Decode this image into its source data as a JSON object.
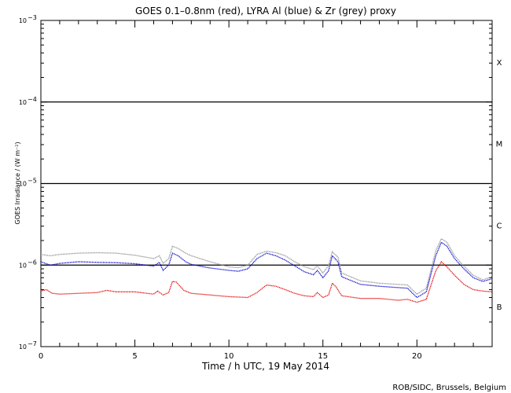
{
  "chart_data": {
    "type": "line",
    "title": "GOES 0.1–0.8nm (red), LYRA Al (blue) & Zr (grey) proxy",
    "xlabel": "Time / h UTC, 19 May 2014",
    "ylabel": "GOES Irradiance / (W m⁻²)",
    "credit": "ROB/SIDC, Brussels, Belgium",
    "x_range": [
      0,
      24
    ],
    "y_range": [
      1e-07,
      0.001
    ],
    "y_scale": "log",
    "x_ticks": [
      0,
      5,
      10,
      15,
      20
    ],
    "x_tick_labels": [
      "0",
      "5",
      "10",
      "15",
      "20"
    ],
    "y_ticks": [
      {
        "value": 1e-07,
        "base": "10",
        "exp": "−7"
      },
      {
        "value": 1e-06,
        "base": "10",
        "exp": "−6"
      },
      {
        "value": 1e-05,
        "base": "10",
        "exp": "−5"
      },
      {
        "value": 0.0001,
        "base": "10",
        "exp": "−4"
      },
      {
        "value": 0.001,
        "base": "10",
        "exp": "−3"
      }
    ],
    "threshold_lines": [
      1e-06,
      1e-05,
      0.0001
    ],
    "flare_classes": [
      {
        "label": "X",
        "value": 0.00031
      },
      {
        "label": "M",
        "value": 3.1e-05
      },
      {
        "label": "C",
        "value": 3.1e-06
      },
      {
        "label": "B",
        "value": 3.1e-07
      }
    ],
    "series": [
      {
        "color": "#e00000",
        "points": [
          [
            0,
            4.8e-07
          ],
          [
            0.3,
            5e-07
          ],
          [
            0.6,
            4.5e-07
          ],
          [
            1,
            4.4e-07
          ],
          [
            2,
            4.5e-07
          ],
          [
            3,
            4.6e-07
          ],
          [
            3.5,
            4.9e-07
          ],
          [
            4,
            4.7e-07
          ],
          [
            5,
            4.7e-07
          ],
          [
            6,
            4.4e-07
          ],
          [
            6.2,
            4.8e-07
          ],
          [
            6.5,
            4.3e-07
          ],
          [
            6.8,
            4.6e-07
          ],
          [
            7,
            6.3e-07
          ],
          [
            7.2,
            6.2e-07
          ],
          [
            7.6,
            4.9e-07
          ],
          [
            8,
            4.5e-07
          ],
          [
            9,
            4.3e-07
          ],
          [
            10,
            4.1e-07
          ],
          [
            11,
            4e-07
          ],
          [
            11.5,
            4.6e-07
          ],
          [
            12,
            5.7e-07
          ],
          [
            12.5,
            5.5e-07
          ],
          [
            13,
            5e-07
          ],
          [
            13.5,
            4.5e-07
          ],
          [
            14,
            4.2e-07
          ],
          [
            14.5,
            4.1e-07
          ],
          [
            14.7,
            4.6e-07
          ],
          [
            15,
            4e-07
          ],
          [
            15.3,
            4.3e-07
          ],
          [
            15.5,
            6e-07
          ],
          [
            15.7,
            5.4e-07
          ],
          [
            16,
            4.2e-07
          ],
          [
            17,
            3.9e-07
          ],
          [
            18,
            3.9e-07
          ],
          [
            19,
            3.7e-07
          ],
          [
            19.5,
            3.8e-07
          ],
          [
            20,
            3.5e-07
          ],
          [
            20.5,
            3.8e-07
          ],
          [
            21,
            8.5e-07
          ],
          [
            21.3,
            1.1e-06
          ],
          [
            21.6,
            9.5e-07
          ],
          [
            22,
            7.5e-07
          ],
          [
            22.5,
            5.8e-07
          ],
          [
            23,
            5e-07
          ],
          [
            23.5,
            4.8e-07
          ],
          [
            24,
            4.7e-07
          ]
        ]
      },
      {
        "color": "#0000d0",
        "points": [
          [
            0,
            1.1e-06
          ],
          [
            0.5,
            1e-06
          ],
          [
            1,
            1.05e-06
          ],
          [
            2,
            1.1e-06
          ],
          [
            3,
            1.08e-06
          ],
          [
            4,
            1.07e-06
          ],
          [
            5,
            1.04e-06
          ],
          [
            6,
            9.7e-07
          ],
          [
            6.3,
            1.08e-06
          ],
          [
            6.5,
            8.6e-07
          ],
          [
            6.8,
            1e-06
          ],
          [
            7,
            1.4e-06
          ],
          [
            7.3,
            1.3e-06
          ],
          [
            7.7,
            1.1e-06
          ],
          [
            8,
            1.02e-06
          ],
          [
            9,
            9.2e-07
          ],
          [
            10,
            8.6e-07
          ],
          [
            10.5,
            8.4e-07
          ],
          [
            11,
            9e-07
          ],
          [
            11.5,
            1.2e-06
          ],
          [
            12,
            1.4e-06
          ],
          [
            12.5,
            1.3e-06
          ],
          [
            13,
            1.15e-06
          ],
          [
            13.5,
            9.8e-07
          ],
          [
            14,
            8.3e-07
          ],
          [
            14.5,
            7.6e-07
          ],
          [
            14.7,
            8.6e-07
          ],
          [
            15,
            7e-07
          ],
          [
            15.3,
            8.5e-07
          ],
          [
            15.5,
            1.3e-06
          ],
          [
            15.8,
            1.1e-06
          ],
          [
            16,
            7.2e-07
          ],
          [
            17,
            5.8e-07
          ],
          [
            18,
            5.5e-07
          ],
          [
            19,
            5.3e-07
          ],
          [
            19.5,
            5.2e-07
          ],
          [
            20,
            4e-07
          ],
          [
            20.5,
            4.7e-07
          ],
          [
            21,
            1.3e-06
          ],
          [
            21.3,
            1.9e-06
          ],
          [
            21.6,
            1.7e-06
          ],
          [
            22,
            1.2e-06
          ],
          [
            22.5,
            9e-07
          ],
          [
            23,
            7e-07
          ],
          [
            23.5,
            6.3e-07
          ],
          [
            24,
            6.8e-07
          ]
        ]
      },
      {
        "color": "#909090",
        "points": [
          [
            0,
            1.35e-06
          ],
          [
            0.5,
            1.3e-06
          ],
          [
            1,
            1.35e-06
          ],
          [
            2,
            1.4e-06
          ],
          [
            3,
            1.42e-06
          ],
          [
            4,
            1.4e-06
          ],
          [
            5,
            1.32e-06
          ],
          [
            6,
            1.2e-06
          ],
          [
            6.3,
            1.3e-06
          ],
          [
            6.5,
            1.05e-06
          ],
          [
            6.8,
            1.2e-06
          ],
          [
            7,
            1.7e-06
          ],
          [
            7.3,
            1.6e-06
          ],
          [
            7.7,
            1.4e-06
          ],
          [
            8,
            1.3e-06
          ],
          [
            9,
            1.1e-06
          ],
          [
            10,
            9.5e-07
          ],
          [
            10.5,
            9.3e-07
          ],
          [
            11,
            1e-06
          ],
          [
            11.5,
            1.35e-06
          ],
          [
            12,
            1.48e-06
          ],
          [
            12.5,
            1.42e-06
          ],
          [
            13,
            1.3e-06
          ],
          [
            13.5,
            1.1e-06
          ],
          [
            14,
            9.6e-07
          ],
          [
            14.5,
            8.8e-07
          ],
          [
            14.7,
            9.8e-07
          ],
          [
            15,
            8e-07
          ],
          [
            15.3,
            9.8e-07
          ],
          [
            15.5,
            1.45e-06
          ],
          [
            15.8,
            1.25e-06
          ],
          [
            16,
            8e-07
          ],
          [
            17,
            6.4e-07
          ],
          [
            18,
            6e-07
          ],
          [
            19,
            5.8e-07
          ],
          [
            19.5,
            5.7e-07
          ],
          [
            20,
            4.4e-07
          ],
          [
            20.5,
            5.2e-07
          ],
          [
            21,
            1.5e-06
          ],
          [
            21.3,
            2.1e-06
          ],
          [
            21.6,
            1.9e-06
          ],
          [
            22,
            1.3e-06
          ],
          [
            22.5,
            9.7e-07
          ],
          [
            23,
            7.5e-07
          ],
          [
            23.5,
            6.6e-07
          ],
          [
            24,
            7.2e-07
          ]
        ]
      }
    ]
  }
}
